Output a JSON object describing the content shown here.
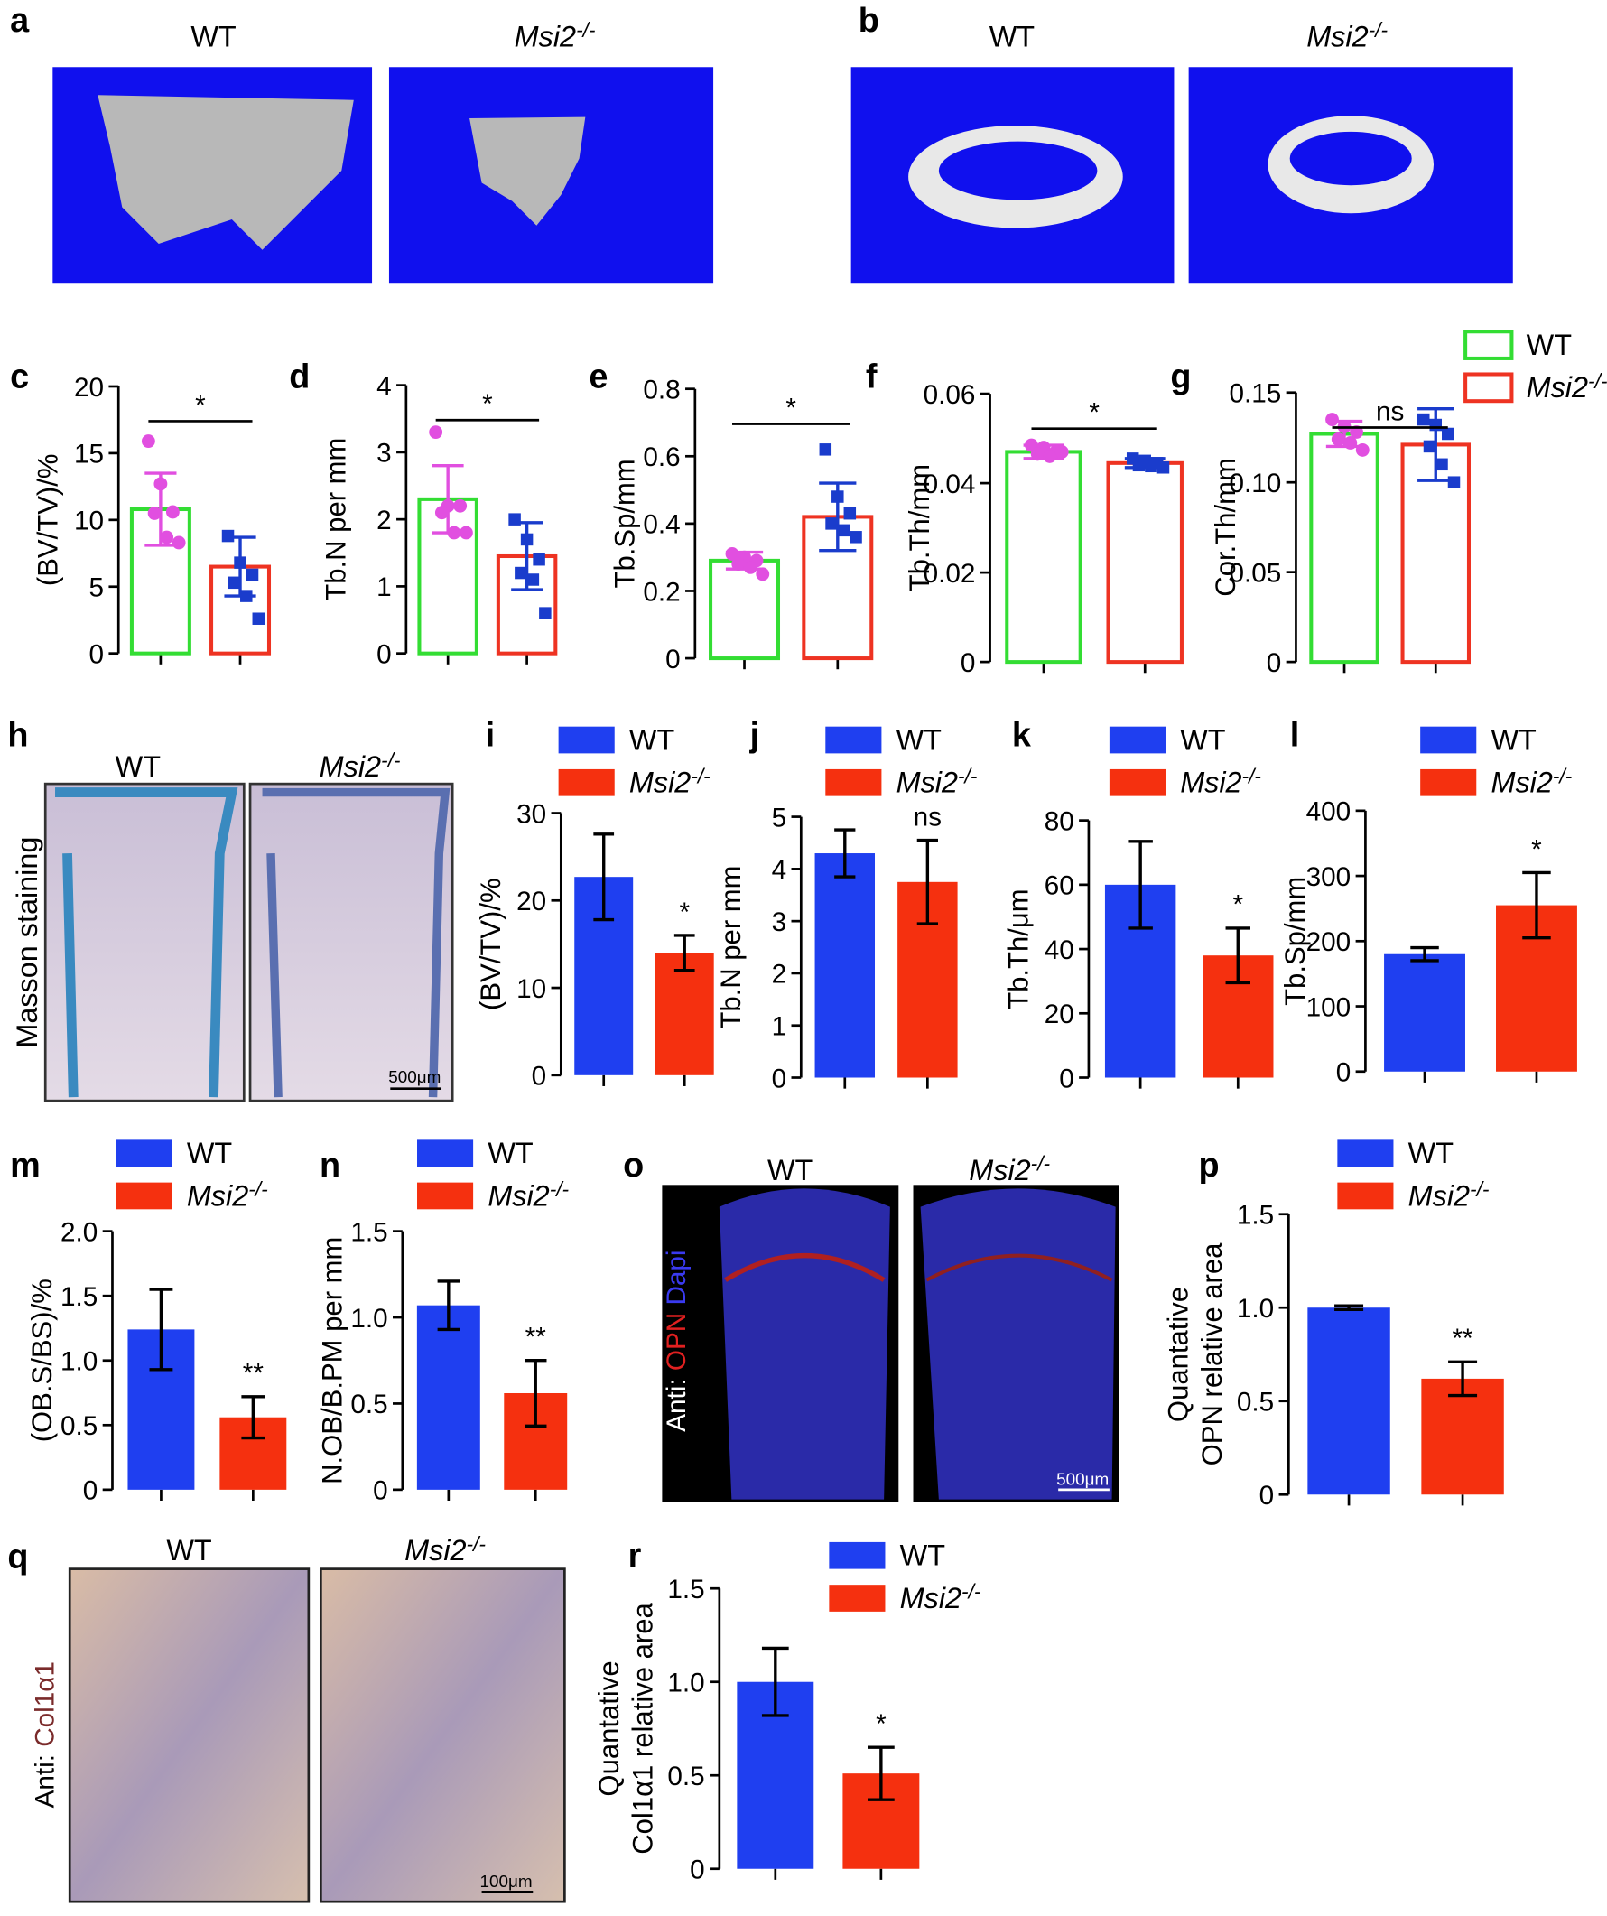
{
  "image_panels": {
    "a": {
      "label": "a",
      "titles": [
        "WT",
        "Msi2-/-"
      ]
    },
    "b": {
      "label": "b",
      "titles": [
        "WT",
        "Msi2-/-"
      ]
    },
    "h": {
      "label": "h",
      "titles": [
        "WT",
        "Msi2-/-"
      ],
      "side_label": "Masson staining",
      "scale_bar": "500μm"
    },
    "o": {
      "label": "o",
      "titles": [
        "WT",
        "Msi2-/-"
      ],
      "side_label": [
        "Anti:",
        "OPN",
        "Dapi"
      ],
      "scale_bar": "500μm"
    },
    "q": {
      "label": "q",
      "titles": [
        "WT",
        "Msi2-/-"
      ],
      "side_label": [
        "Anti:",
        "Col1α1"
      ],
      "scale_bar": "100μm"
    }
  },
  "chart_data": [
    {
      "type": "bar",
      "label": "c",
      "ylabel": [
        "(BV/TV)/%"
      ],
      "ylim": [
        0,
        20
      ],
      "yticks": [
        0,
        5,
        10,
        15,
        20
      ],
      "annotation": "*",
      "style": "outline",
      "series": [
        {
          "color": "#33dd33",
          "point_color": "#e14fe0",
          "values": [
            10.8
          ],
          "errors": [
            2.7
          ],
          "points": [
            15.9,
            12.7,
            10.6,
            10.5,
            8.7,
            8.3
          ]
        },
        {
          "color": "#ee3322",
          "point_color": "#1a3ccc",
          "values": [
            6.5
          ],
          "errors": [
            2.2
          ],
          "points": [
            8.8,
            6.8,
            5.9,
            5.3,
            4.3,
            2.6
          ]
        }
      ]
    },
    {
      "type": "bar",
      "label": "d",
      "ylabel": [
        "Tb.N per mm"
      ],
      "ylim": [
        0,
        4
      ],
      "yticks": [
        0,
        1,
        2,
        3,
        4
      ],
      "annotation": "*",
      "style": "outline",
      "series": [
        {
          "color": "#33dd33",
          "point_color": "#e14fe0",
          "values": [
            2.3
          ],
          "errors": [
            0.5
          ],
          "points": [
            3.3,
            2.2,
            2.2,
            2.1,
            1.8,
            1.8
          ]
        },
        {
          "color": "#ee3322",
          "point_color": "#1a3ccc",
          "values": [
            1.45
          ],
          "errors": [
            0.5
          ],
          "points": [
            2.0,
            1.7,
            1.4,
            1.2,
            1.1,
            0.6
          ]
        }
      ]
    },
    {
      "type": "bar",
      "label": "e",
      "ylabel": [
        "Tb.Sp/mm"
      ],
      "ylim": [
        0,
        0.8
      ],
      "yticks": [
        0,
        0.2,
        0.4,
        0.6,
        0.8
      ],
      "annotation": "*",
      "style": "outline",
      "series": [
        {
          "color": "#33dd33",
          "point_color": "#e14fe0",
          "values": [
            0.29
          ],
          "errors": [
            0.025
          ],
          "points": [
            0.31,
            0.3,
            0.29,
            0.28,
            0.27,
            0.25
          ]
        },
        {
          "color": "#ee3322",
          "point_color": "#1a3ccc",
          "values": [
            0.42
          ],
          "errors": [
            0.1
          ],
          "points": [
            0.62,
            0.48,
            0.43,
            0.4,
            0.38,
            0.36
          ]
        }
      ]
    },
    {
      "type": "bar",
      "label": "f",
      "ylabel": [
        "Tb.Th/mm"
      ],
      "ylim": [
        0,
        0.06
      ],
      "yticks": [
        0,
        0.02,
        0.04,
        0.06
      ],
      "annotation": "*",
      "style": "outline",
      "series": [
        {
          "color": "#33dd33",
          "point_color": "#e14fe0",
          "values": [
            0.047
          ],
          "errors": [
            0.0015
          ],
          "points": [
            0.0485,
            0.048,
            0.047,
            0.0465,
            0.046,
            0.047
          ]
        },
        {
          "color": "#ee3322",
          "point_color": "#1a3ccc",
          "values": [
            0.0445
          ],
          "errors": [
            0.001
          ],
          "points": [
            0.0455,
            0.045,
            0.0445,
            0.044,
            0.0438,
            0.0435
          ]
        }
      ]
    },
    {
      "type": "bar",
      "label": "g",
      "ylabel": [
        "Cor.Th/mm"
      ],
      "ylim": [
        0,
        0.15
      ],
      "yticks": [
        0,
        0.05,
        {
          "value": 0.1,
          "label": "0.10"
        },
        0.15
      ],
      "annotation": "ns",
      "style": "outline",
      "series": [
        {
          "name": "WT",
          "color": "#33dd33",
          "point_color": "#e14fe0",
          "values": [
            0.127
          ],
          "errors": [
            0.007
          ],
          "points": [
            0.135,
            0.131,
            0.128,
            0.124,
            0.122,
            0.118
          ]
        },
        {
          "name": "Msi2-/-",
          "color": "#ee3322",
          "point_color": "#1a3ccc",
          "values": [
            0.121
          ],
          "errors": [
            0.02
          ],
          "points": [
            0.135,
            0.132,
            0.127,
            0.12,
            0.11,
            0.1
          ]
        }
      ]
    },
    {
      "type": "bar",
      "label": "i",
      "ylabel": [
        "(BV/TV)/%"
      ],
      "ylim": [
        0,
        30
      ],
      "yticks": [
        0,
        10,
        20,
        30
      ],
      "annotation": "*",
      "style": "filled",
      "series": [
        {
          "name": "WT",
          "color": "#1f3ff0",
          "values": [
            22.7
          ],
          "errors": [
            4.9
          ]
        },
        {
          "name": "Msi2-/-",
          "color": "#f5300f",
          "values": [
            14
          ],
          "errors": [
            2
          ]
        }
      ]
    },
    {
      "type": "bar",
      "label": "j",
      "ylabel": [
        "Tb.N per mm"
      ],
      "ylim": [
        0,
        5
      ],
      "yticks": [
        0,
        1,
        2,
        3,
        4,
        5
      ],
      "annotation": "ns",
      "style": "filled",
      "series": [
        {
          "name": "WT",
          "color": "#1f3ff0",
          "values": [
            4.3
          ],
          "errors": [
            0.45
          ]
        },
        {
          "name": "Msi2-/-",
          "color": "#f5300f",
          "values": [
            3.75
          ],
          "errors": [
            0.8
          ]
        }
      ]
    },
    {
      "type": "bar",
      "label": "k",
      "ylabel": [
        "Tb.Th/μm"
      ],
      "ylim": [
        0,
        80
      ],
      "yticks": [
        0,
        20,
        40,
        60,
        80
      ],
      "annotation": "*",
      "style": "filled",
      "series": [
        {
          "name": "WT",
          "color": "#1f3ff0",
          "values": [
            60
          ],
          "errors": [
            13.5
          ]
        },
        {
          "name": "Msi2-/-",
          "color": "#f5300f",
          "values": [
            38
          ],
          "errors": [
            8.5
          ]
        }
      ]
    },
    {
      "type": "bar",
      "label": "l",
      "ylabel": [
        "Tb.Sp/mm"
      ],
      "ylim": [
        0,
        400
      ],
      "yticks": [
        0,
        100,
        200,
        300,
        400
      ],
      "annotation": "*",
      "style": "filled",
      "series": [
        {
          "name": "WT",
          "color": "#1f3ff0",
          "values": [
            180
          ],
          "errors": [
            10
          ]
        },
        {
          "name": "Msi2-/-",
          "color": "#f5300f",
          "values": [
            255
          ],
          "errors": [
            50
          ]
        }
      ]
    },
    {
      "type": "bar",
      "label": "m",
      "ylabel": [
        "(OB.S/BS)/%"
      ],
      "ylim": [
        0,
        2
      ],
      "yticks": [
        0,
        0.5,
        {
          "value": 1,
          "label": "1.0"
        },
        1.5,
        {
          "value": 2,
          "label": "2.0"
        }
      ],
      "annotation": "**",
      "style": "filled",
      "series": [
        {
          "name": "WT",
          "color": "#1f3ff0",
          "values": [
            1.24
          ],
          "errors": [
            0.31
          ]
        },
        {
          "name": "Msi2-/-",
          "color": "#f5300f",
          "values": [
            0.56
          ],
          "errors": [
            0.16
          ]
        }
      ]
    },
    {
      "type": "bar",
      "label": "n",
      "ylabel": [
        "N.OB/B.PM per mm"
      ],
      "ylim": [
        0,
        1.5
      ],
      "yticks": [
        0,
        0.5,
        {
          "value": 1,
          "label": "1.0"
        },
        1.5
      ],
      "annotation": "**",
      "style": "filled",
      "series": [
        {
          "name": "WT",
          "color": "#1f3ff0",
          "values": [
            1.07
          ],
          "errors": [
            0.14
          ]
        },
        {
          "name": "Msi2-/-",
          "color": "#f5300f",
          "values": [
            0.56
          ],
          "errors": [
            0.19
          ]
        }
      ]
    },
    {
      "type": "bar",
      "label": "p",
      "ylabel": [
        "Quantative",
        "OPN relative area"
      ],
      "ylim": [
        0,
        1.5
      ],
      "yticks": [
        0,
        0.5,
        {
          "value": 1,
          "label": "1.0"
        },
        1.5
      ],
      "annotation": "**",
      "style": "filled",
      "series": [
        {
          "name": "WT",
          "color": "#1f3ff0",
          "values": [
            1.0
          ],
          "errors": [
            0.01
          ]
        },
        {
          "name": "Msi2-/-",
          "color": "#f5300f",
          "values": [
            0.62
          ],
          "errors": [
            0.09
          ]
        }
      ]
    },
    {
      "type": "bar",
      "label": "r",
      "ylabel": [
        "Quantative",
        "Col1α1 relative area"
      ],
      "ylim": [
        0,
        1.5
      ],
      "yticks": [
        0,
        0.5,
        {
          "value": 1,
          "label": "1.0"
        },
        1.5
      ],
      "annotation": "*",
      "style": "filled",
      "series": [
        {
          "name": "WT",
          "color": "#1f3ff0",
          "values": [
            1.0
          ],
          "errors": [
            0.18
          ]
        },
        {
          "name": "Msi2-/-",
          "color": "#f5300f",
          "values": [
            0.51
          ],
          "errors": [
            0.14
          ]
        }
      ]
    }
  ]
}
